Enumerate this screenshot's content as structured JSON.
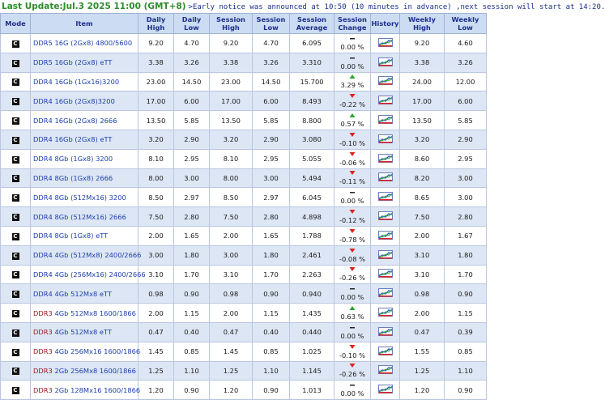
{
  "header": {
    "update": "Last Update:Jul.3 2025 11:00 (GMT+8)",
    "notice": ">Early notice was announced at 10:50 (10 minutes in advance) ,next session will start at 14:20."
  },
  "table": {
    "columns": [
      "Mode",
      "Item",
      "Daily High",
      "Daily Low",
      "Session High",
      "Session Low",
      "Session Average",
      "Session Change",
      "History",
      "Weekly High",
      "Weekly Low"
    ],
    "rows": [
      {
        "mode": "C",
        "gen": "DDR5",
        "spec": "16G (2Gx8) 4800/5600",
        "cells": [
          "9.20",
          "4.70",
          "9.20",
          "4.70",
          "6.095"
        ],
        "change": "0.00 %",
        "weekly": [
          "9.20",
          "4.60"
        ]
      },
      {
        "mode": "C",
        "gen": "DDR5",
        "spec": "16Gb (2Gx8) eTT",
        "cells": [
          "3.38",
          "3.26",
          "3.38",
          "3.26",
          "3.310"
        ],
        "change": "0.00 %",
        "weekly": [
          "3.38",
          "3.26"
        ]
      },
      {
        "mode": "C",
        "gen": "DDR4",
        "spec": "16Gb (1Gx16)3200",
        "cells": [
          "23.00",
          "14.50",
          "23.00",
          "14.50",
          "15.700"
        ],
        "change": "3.29 %",
        "weekly": [
          "24.00",
          "12.00"
        ]
      },
      {
        "mode": "C",
        "gen": "DDR4",
        "spec": "16Gb (2Gx8)3200",
        "cells": [
          "17.00",
          "6.00",
          "17.00",
          "6.00",
          "8.493"
        ],
        "change": "-0.22 %",
        "weekly": [
          "17.00",
          "6.00"
        ]
      },
      {
        "mode": "C",
        "gen": "DDR4",
        "spec": "16Gb (2Gx8) 2666",
        "cells": [
          "13.50",
          "5.85",
          "13.50",
          "5.85",
          "8.800"
        ],
        "change": "0.57 %",
        "weekly": [
          "13.50",
          "5.85"
        ]
      },
      {
        "mode": "C",
        "gen": "DDR4",
        "spec": "16Gb (2Gx8) eTT",
        "cells": [
          "3.20",
          "2.90",
          "3.20",
          "2.90",
          "3.080"
        ],
        "change": "-0.10 %",
        "weekly": [
          "3.20",
          "2.90"
        ]
      },
      {
        "mode": "C",
        "gen": "DDR4",
        "spec": "8Gb (1Gx8) 3200",
        "cells": [
          "8.10",
          "2.95",
          "8.10",
          "2.95",
          "5.055"
        ],
        "change": "-0.06 %",
        "weekly": [
          "8.60",
          "2.95"
        ]
      },
      {
        "mode": "C",
        "gen": "DDR4",
        "spec": "8Gb (1Gx8) 2666",
        "cells": [
          "8.00",
          "3.00",
          "8.00",
          "3.00",
          "5.494"
        ],
        "change": "-0.11 %",
        "weekly": [
          "8.20",
          "3.00"
        ]
      },
      {
        "mode": "C",
        "gen": "DDR4",
        "spec": "8Gb (512Mx16) 3200",
        "cells": [
          "8.50",
          "2.97",
          "8.50",
          "2.97",
          "6.045"
        ],
        "change": "0.00 %",
        "weekly": [
          "8.65",
          "3.00"
        ]
      },
      {
        "mode": "C",
        "gen": "DDR4",
        "spec": "8Gb (512Mx16) 2666",
        "cells": [
          "7.50",
          "2.80",
          "7.50",
          "2.80",
          "4.898"
        ],
        "change": "-0.12 %",
        "weekly": [
          "7.50",
          "2.80"
        ]
      },
      {
        "mode": "C",
        "gen": "DDR4",
        "spec": "8Gb (1Gx8) eTT",
        "cells": [
          "2.00",
          "1.65",
          "2.00",
          "1.65",
          "1.788"
        ],
        "change": "-0.78 %",
        "weekly": [
          "2.00",
          "1.67"
        ]
      },
      {
        "mode": "C",
        "gen": "DDR4",
        "spec": "4Gb (512Mx8) 2400/2666",
        "cells": [
          "3.00",
          "1.80",
          "3.00",
          "1.80",
          "2.461"
        ],
        "change": "-0.08 %",
        "weekly": [
          "3.10",
          "1.80"
        ]
      },
      {
        "mode": "C",
        "gen": "DDR4",
        "spec": "4Gb (256Mx16) 2400/2666",
        "cells": [
          "3.10",
          "1.70",
          "3.10",
          "1.70",
          "2.263"
        ],
        "change": "-0.26 %",
        "weekly": [
          "3.10",
          "1.70"
        ]
      },
      {
        "mode": "C",
        "gen": "DDR4",
        "spec": "4Gb 512Mx8 eTT",
        "cells": [
          "0.98",
          "0.90",
          "0.98",
          "0.90",
          "0.940"
        ],
        "change": "0.00 %",
        "weekly": [
          "0.98",
          "0.90"
        ]
      },
      {
        "mode": "C",
        "gen": "DDR3",
        "gen_color": "#9a1b1b",
        "spec": "4Gb 512Mx8 1600/1866",
        "cells": [
          "2.00",
          "1.15",
          "2.00",
          "1.15",
          "1.435"
        ],
        "change": "0.63 %",
        "weekly": [
          "2.00",
          "1.15"
        ]
      },
      {
        "mode": "C",
        "gen": "DDR3",
        "gen_color": "#9a1b1b",
        "spec": "4Gb 512Mx8 eTT",
        "cells": [
          "0.47",
          "0.40",
          "0.47",
          "0.40",
          "0.440"
        ],
        "change": "0.00 %",
        "weekly": [
          "0.47",
          "0.39"
        ]
      },
      {
        "mode": "C",
        "gen": "DDR3",
        "gen_color": "#9a1b1b",
        "spec": "4Gb 256Mx16 1600/1866",
        "cells": [
          "1.45",
          "0.85",
          "1.45",
          "0.85",
          "1.025"
        ],
        "change": "-0.10 %",
        "weekly": [
          "1.55",
          "0.85"
        ]
      },
      {
        "mode": "C",
        "gen": "DDR3",
        "gen_color": "#9a1b1b",
        "spec": "2Gb 256Mx8 1600/1866",
        "cells": [
          "1.25",
          "1.10",
          "1.25",
          "1.10",
          "1.145"
        ],
        "change": "-0.26 %",
        "weekly": [
          "1.25",
          "1.10"
        ]
      },
      {
        "mode": "C",
        "gen": "DDR3",
        "gen_color": "#9a1b1b",
        "spec": "2Gb 128Mx16 1600/1866",
        "cells": [
          "1.20",
          "0.90",
          "1.20",
          "0.90",
          "1.013"
        ],
        "change": "0.00 %",
        "weekly": [
          "1.20",
          "0.90"
        ]
      }
    ]
  }
}
